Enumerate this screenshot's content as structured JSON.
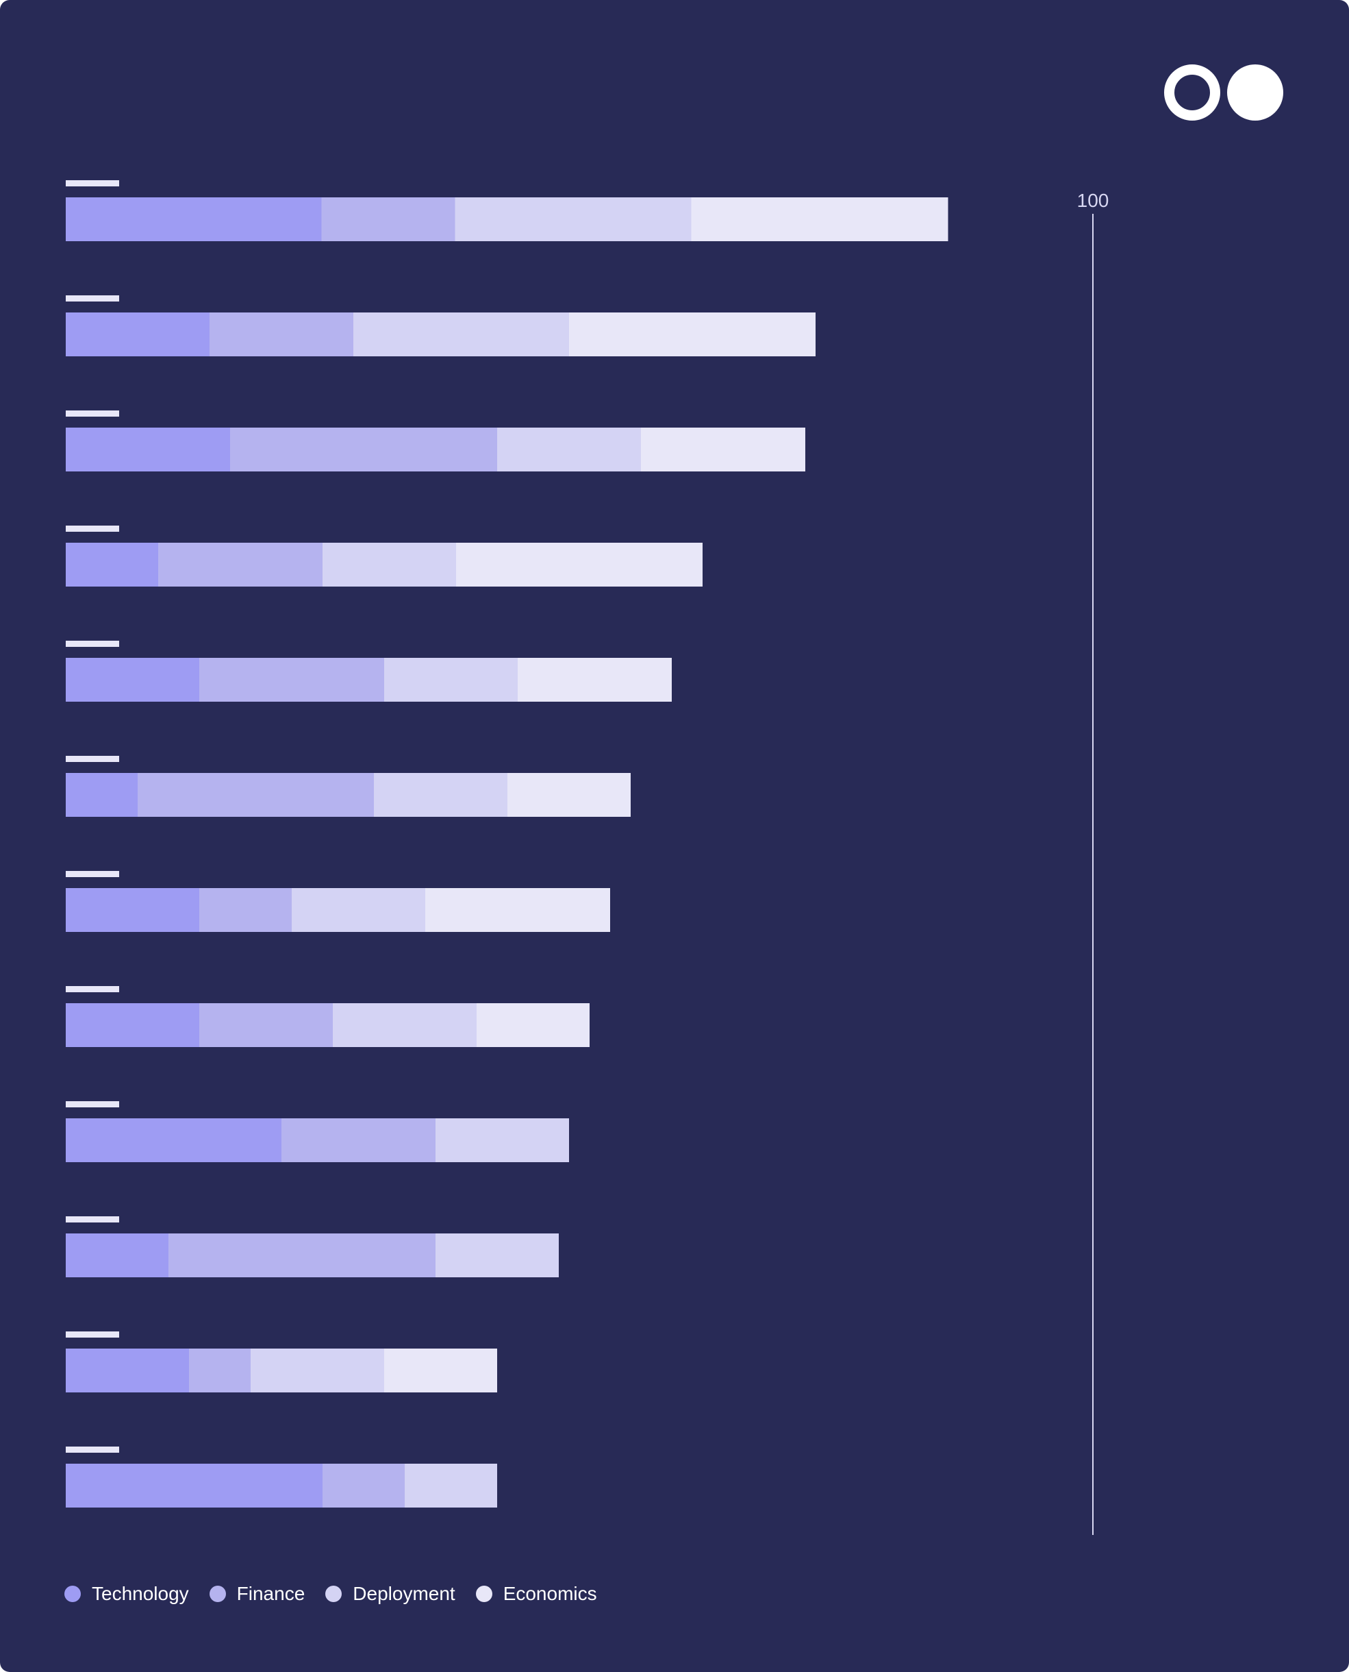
{
  "chart_data": {
    "type": "bar",
    "orientation": "horizontal",
    "stacked": true,
    "axis_max_label": "100",
    "xlim": [
      0,
      100
    ],
    "categories": [
      "",
      "",
      "",
      "",
      "",
      "",
      "",
      "",
      "",
      "",
      "",
      ""
    ],
    "series": [
      {
        "name": "Technology",
        "color": "#9e9cf3",
        "values": [
          24.9,
          14.0,
          16.0,
          9.0,
          13.0,
          7.0,
          13.0,
          13.0,
          21.0,
          10.0,
          12.0,
          25.0
        ]
      },
      {
        "name": "Finance",
        "color": "#b5b3ef",
        "values": [
          13.0,
          14.0,
          26.0,
          16.0,
          18.0,
          23.0,
          9.0,
          13.0,
          15.0,
          26.0,
          6.0,
          8.0
        ]
      },
      {
        "name": "Deployment",
        "color": "#d4d3f4",
        "values": [
          23.0,
          21.0,
          14.0,
          13.0,
          13.0,
          13.0,
          13.0,
          14.0,
          13.0,
          12.0,
          13.0,
          9.0
        ]
      },
      {
        "name": "Economics",
        "color": "#e8e7f8",
        "values": [
          25.0,
          24.0,
          16.0,
          24.0,
          15.0,
          12.0,
          18.0,
          11.0,
          0,
          0,
          11.0,
          0
        ]
      }
    ],
    "legend_position": "bottom-left",
    "grid": false
  },
  "logo": {
    "name": "brand-logo"
  }
}
